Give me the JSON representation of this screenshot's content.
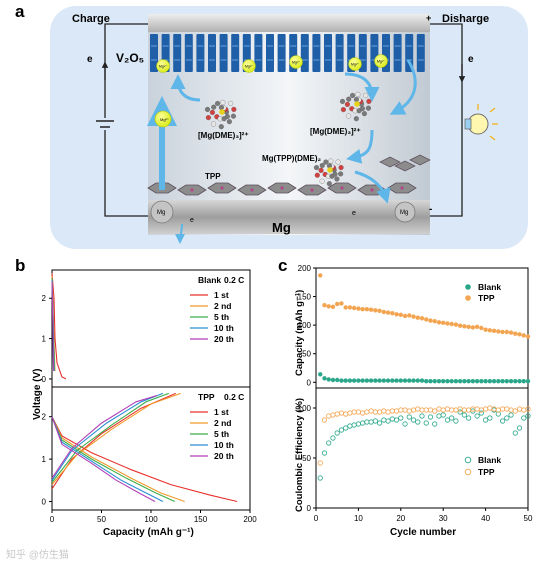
{
  "panels": {
    "a": "a",
    "b": "b",
    "c": "c"
  },
  "schematic": {
    "charge": "Charge",
    "discharge": "Disharge",
    "plus": "+",
    "minus": "-",
    "electron": "e",
    "v2o5": "V₂O₅",
    "mg2": "Mg²⁺",
    "mg": "Mg",
    "tpp": "TPP",
    "complex1": "[Mg(DME)₃]²⁺",
    "complex2": "[Mg(DME)₃]²⁺",
    "complex3": "Mg(TPP)(DME)₂",
    "bottom_label": "Mg",
    "colors": {
      "background": "#dbe8f7",
      "cathode_block": "#1e5fa8",
      "mg_ion": "#e6f42a",
      "arrow": "#5fb6e8",
      "plate": "#a9a9a9"
    }
  },
  "panel_b": {
    "ylabel": "Voltage (V)",
    "xlabel": "Capacity (mAh g⁻¹)",
    "top_header": {
      "left": "Blank",
      "right": "0.2 C"
    },
    "bottom_header": {
      "left": "TPP",
      "right": "0.2 C"
    },
    "legend": [
      "1 st",
      "2 nd",
      "5 th",
      "10 th",
      "20 th"
    ],
    "yticks": [
      "0",
      "1",
      "2"
    ],
    "xticks": [
      "0",
      "50",
      "100",
      "150",
      "200"
    ]
  },
  "panel_c": {
    "ylabel_top": "Capacity (mAh g⁻¹)",
    "ylabel_bottom": "Coulombic Efficiency (%)",
    "xlabel": "Cycle number",
    "legend_top": [
      "Blank",
      "TPP"
    ],
    "legend_bottom": [
      "Blank",
      "TPP"
    ],
    "yticks_top": [
      "0",
      "50",
      "100",
      "150",
      "200"
    ],
    "yticks_bottom": [
      "0",
      "50",
      "100"
    ],
    "xticks": [
      "0",
      "10",
      "20",
      "30",
      "40",
      "50"
    ]
  },
  "watermark": "知乎 @仿生猫",
  "chart_data": [
    {
      "type": "line",
      "panel": "b-top",
      "header": "Blank 0.2 C",
      "xlabel": "Capacity (mAh g⁻¹)",
      "ylabel": "Voltage (V)",
      "xlim": [
        0,
        200
      ],
      "ylim": [
        -0.2,
        2.7
      ],
      "colors": [
        "#e8312c",
        "#f09a2c",
        "#3cae4a",
        "#2a8fd1",
        "#b23fb7"
      ],
      "series": [
        {
          "name": "1 st",
          "points": [
            [
              0,
              2.62
            ],
            [
              2,
              2.0
            ],
            [
              3,
              1.0
            ],
            [
              5,
              0.4
            ],
            [
              10,
              0.05
            ],
            [
              14,
              0.0
            ]
          ]
        },
        {
          "name": "2 nd",
          "points": [
            [
              0,
              2.55
            ],
            [
              1,
              1.8
            ],
            [
              2,
              0.9
            ],
            [
              3,
              0.2
            ]
          ]
        },
        {
          "name": "5 th",
          "points": [
            [
              0,
              2.5
            ],
            [
              1,
              1.6
            ],
            [
              2,
              0.7
            ],
            [
              2.5,
              0.2
            ]
          ]
        },
        {
          "name": "10 th",
          "points": [
            [
              0,
              2.45
            ],
            [
              1,
              1.5
            ],
            [
              1.5,
              0.7
            ],
            [
              2,
              0.2
            ]
          ]
        },
        {
          "name": "20 th",
          "points": [
            [
              0,
              2.4
            ],
            [
              0.8,
              1.4
            ],
            [
              1.2,
              0.6
            ],
            [
              1.6,
              0.2
            ]
          ]
        }
      ]
    },
    {
      "type": "line",
      "panel": "b-bottom",
      "header": "TPP 0.2 C",
      "xlabel": "Capacity (mAh g⁻¹)",
      "ylabel": "Voltage (V)",
      "xlim": [
        0,
        200
      ],
      "ylim": [
        -0.2,
        2.7
      ],
      "colors": [
        "#e8312c",
        "#f09a2c",
        "#3cae4a",
        "#2a8fd1",
        "#b23fb7"
      ],
      "series": [
        {
          "name": "1 st",
          "discharge": [
            [
              0,
              2.0
            ],
            [
              10,
              1.55
            ],
            [
              40,
              1.15
            ],
            [
              80,
              0.75
            ],
            [
              120,
              0.4
            ],
            [
              160,
              0.15
            ],
            [
              187,
              0.0
            ]
          ],
          "charge": [
            [
              0,
              0.3
            ],
            [
              20,
              1.0
            ],
            [
              50,
              1.6
            ],
            [
              90,
              2.2
            ],
            [
              120,
              2.5
            ],
            [
              125,
              2.55
            ]
          ]
        },
        {
          "name": "2 nd",
          "discharge": [
            [
              0,
              2.0
            ],
            [
              10,
              1.5
            ],
            [
              40,
              1.05
            ],
            [
              80,
              0.55
            ],
            [
              110,
              0.2
            ],
            [
              134,
              0.0
            ]
          ],
          "charge": [
            [
              0,
              0.4
            ],
            [
              25,
              1.1
            ],
            [
              60,
              1.7
            ],
            [
              100,
              2.3
            ],
            [
              130,
              2.55
            ]
          ]
        },
        {
          "name": "5 th",
          "discharge": [
            [
              0,
              2.0
            ],
            [
              10,
              1.45
            ],
            [
              40,
              1.0
            ],
            [
              75,
              0.55
            ],
            [
              105,
              0.2
            ],
            [
              124,
              0.0
            ]
          ],
          "charge": [
            [
              0,
              0.45
            ],
            [
              25,
              1.2
            ],
            [
              60,
              1.8
            ],
            [
              95,
              2.35
            ],
            [
              118,
              2.55
            ]
          ]
        },
        {
          "name": "10 th",
          "discharge": [
            [
              0,
              2.0
            ],
            [
              10,
              1.4
            ],
            [
              40,
              0.95
            ],
            [
              70,
              0.5
            ],
            [
              95,
              0.2
            ],
            [
              112,
              0.0
            ]
          ],
          "charge": [
            [
              0,
              0.5
            ],
            [
              20,
              1.2
            ],
            [
              55,
              1.85
            ],
            [
              90,
              2.35
            ],
            [
              112,
              2.55
            ]
          ]
        },
        {
          "name": "20 th",
          "discharge": [
            [
              0,
              2.0
            ],
            [
              10,
              1.35
            ],
            [
              40,
              0.9
            ],
            [
              65,
              0.5
            ],
            [
              88,
              0.2
            ],
            [
              104,
              0.0
            ]
          ],
          "charge": [
            [
              0,
              0.55
            ],
            [
              20,
              1.25
            ],
            [
              50,
              1.85
            ],
            [
              85,
              2.35
            ],
            [
              106,
              2.5
            ]
          ]
        }
      ]
    },
    {
      "type": "scatter",
      "panel": "c-top",
      "xlabel": "Cycle number",
      "ylabel": "Capacity (mAh g⁻¹)",
      "xlim": [
        0,
        50
      ],
      "ylim": [
        -10,
        200
      ],
      "colors": [
        "#2aa78a",
        "#f3a451"
      ],
      "series": [
        {
          "name": "Blank",
          "x": [
            1,
            2,
            3,
            4,
            5,
            6,
            7,
            8,
            9,
            10,
            11,
            12,
            13,
            14,
            15,
            16,
            17,
            18,
            19,
            20,
            21,
            22,
            23,
            24,
            25,
            26,
            27,
            28,
            29,
            30,
            31,
            32,
            33,
            34,
            35,
            36,
            37,
            38,
            39,
            40,
            41,
            42,
            43,
            44,
            45,
            46,
            47,
            48,
            49,
            50
          ],
          "y": [
            14,
            7,
            5,
            4,
            4,
            3,
            3,
            3,
            3,
            3,
            3,
            3,
            3,
            3,
            3,
            3,
            3,
            3,
            3,
            3,
            3,
            3,
            3,
            3,
            3,
            2,
            2,
            2,
            2,
            2,
            2,
            2,
            2,
            2,
            2,
            2,
            2,
            2,
            2,
            2,
            2,
            2,
            2,
            2,
            2,
            2,
            2,
            2,
            2,
            2
          ]
        },
        {
          "name": "TPP",
          "x": [
            1,
            2,
            3,
            4,
            5,
            6,
            7,
            8,
            9,
            10,
            11,
            12,
            13,
            14,
            15,
            16,
            17,
            18,
            19,
            20,
            21,
            22,
            23,
            24,
            25,
            26,
            27,
            28,
            29,
            30,
            31,
            32,
            33,
            34,
            35,
            36,
            37,
            38,
            39,
            40,
            41,
            42,
            43,
            44,
            45,
            46,
            47,
            48,
            49,
            50
          ],
          "y": [
            187,
            135,
            133,
            132,
            137,
            138,
            131,
            131,
            130,
            129,
            128,
            128,
            127,
            126,
            125,
            123,
            122,
            121,
            119,
            118,
            116,
            117,
            115,
            113,
            112,
            110,
            108,
            107,
            105,
            104,
            103,
            102,
            101,
            99,
            98,
            97,
            96,
            97,
            95,
            92,
            91,
            90,
            89,
            88,
            88,
            87,
            85,
            84,
            82,
            80
          ]
        }
      ]
    },
    {
      "type": "scatter",
      "panel": "c-bottom",
      "xlabel": "Cycle number",
      "ylabel": "Coulombic Efficiency (%)",
      "xlim": [
        0,
        50
      ],
      "ylim": [
        0,
        120
      ],
      "colors": [
        "#2aa78a",
        "#f3a451"
      ],
      "series": [
        {
          "name": "Blank",
          "x": [
            1,
            2,
            3,
            4,
            5,
            6,
            7,
            8,
            9,
            10,
            11,
            12,
            13,
            14,
            15,
            16,
            17,
            18,
            19,
            20,
            21,
            22,
            23,
            24,
            25,
            26,
            27,
            28,
            29,
            30,
            31,
            32,
            33,
            34,
            35,
            36,
            37,
            38,
            39,
            40,
            41,
            42,
            43,
            44,
            45,
            46,
            47,
            48,
            49,
            50
          ],
          "y": [
            30,
            55,
            65,
            70,
            75,
            78,
            80,
            82,
            83,
            84,
            85,
            86,
            86,
            87,
            85,
            88,
            87,
            89,
            88,
            90,
            84,
            91,
            88,
            86,
            92,
            85,
            91,
            84,
            92,
            93,
            88,
            90,
            87,
            96,
            93,
            90,
            97,
            92,
            95,
            88,
            90,
            98,
            94,
            87,
            90,
            93,
            75,
            80,
            90,
            92
          ]
        },
        {
          "name": "TPP",
          "x": [
            1,
            2,
            3,
            4,
            5,
            6,
            7,
            8,
            9,
            10,
            11,
            12,
            13,
            14,
            15,
            16,
            17,
            18,
            19,
            20,
            21,
            22,
            23,
            24,
            25,
            26,
            27,
            28,
            29,
            30,
            31,
            32,
            33,
            34,
            35,
            36,
            37,
            38,
            39,
            40,
            41,
            42,
            43,
            44,
            45,
            46,
            47,
            48,
            49,
            50
          ],
          "y": [
            45,
            88,
            92,
            93,
            94,
            95,
            94,
            95,
            96,
            96,
            95,
            96,
            97,
            96,
            96,
            97,
            96,
            97,
            97,
            98,
            98,
            97,
            98,
            99,
            98,
            98,
            98,
            97,
            99,
            98,
            99,
            98,
            98,
            99,
            98,
            98,
            99,
            99,
            98,
            99,
            100,
            99,
            98,
            99,
            99,
            98,
            97,
            99,
            98,
            99
          ]
        }
      ]
    }
  ]
}
